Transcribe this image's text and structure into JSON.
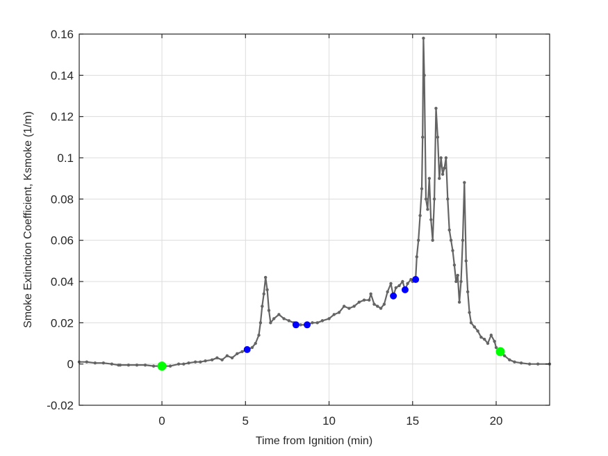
{
  "chart_data": {
    "type": "line",
    "title": "",
    "xlabel": "Time from Ignition (min)",
    "ylabel": "Smoke Extinction Coefficient, Ksmoke (1/m)",
    "xlim": [
      -4.95,
      23.2
    ],
    "ylim": [
      -0.02,
      0.16
    ],
    "xticks": [
      0,
      5,
      10,
      15,
      20
    ],
    "xtick_labels": [
      "0",
      "5",
      "10",
      "15",
      "20"
    ],
    "yticks": [
      -0.02,
      0,
      0.02,
      0.04,
      0.06,
      0.08,
      0.1,
      0.12,
      0.14,
      0.16
    ],
    "ytick_labels": [
      "-0.02",
      "0",
      "0.02",
      "0.04",
      "0.06",
      "0.08",
      "0.1",
      "0.12",
      "0.14",
      "0.16"
    ],
    "grid": true,
    "legend": null,
    "colors": {
      "series": "#646464",
      "start_end_markers": "#00ff00",
      "event_markers": "#0000ff",
      "grid": "#dcdcdc",
      "axis": "#262626"
    },
    "series": [
      {
        "name": "Ksmoke",
        "x": [
          -4.95,
          -4.5,
          -4.0,
          -3.5,
          -3.0,
          -2.6,
          -2.5,
          -2.0,
          -1.5,
          -1.0,
          -0.5,
          0.0,
          0.5,
          1.0,
          1.3,
          1.6,
          2.0,
          2.3,
          2.6,
          3.0,
          3.3,
          3.6,
          3.9,
          4.2,
          4.5,
          4.8,
          5.1,
          5.4,
          5.6,
          5.8,
          5.9,
          6.0,
          6.1,
          6.2,
          6.3,
          6.4,
          6.5,
          6.7,
          7.0,
          7.3,
          7.6,
          7.9,
          8.0,
          8.3,
          8.7,
          9.0,
          9.3,
          9.6,
          10.0,
          10.3,
          10.6,
          10.9,
          11.2,
          11.5,
          11.8,
          12.1,
          12.4,
          12.5,
          12.7,
          12.9,
          13.1,
          13.3,
          13.5,
          13.7,
          13.85,
          14.0,
          14.2,
          14.4,
          14.55,
          14.7,
          14.9,
          15.0,
          15.18,
          15.25,
          15.35,
          15.45,
          15.55,
          15.6,
          15.65,
          15.7,
          15.8,
          15.9,
          16.0,
          16.1,
          16.2,
          16.3,
          16.4,
          16.5,
          16.6,
          16.7,
          16.8,
          16.9,
          17.0,
          17.1,
          17.2,
          17.3,
          17.4,
          17.5,
          17.6,
          17.7,
          17.8,
          17.9,
          18.0,
          18.1,
          18.2,
          18.3,
          18.4,
          18.5,
          18.7,
          18.9,
          19.1,
          19.3,
          19.5,
          19.7,
          19.9,
          20.0,
          20.25,
          20.5,
          20.8,
          21.1,
          21.5,
          22.0,
          22.5,
          23.2
        ],
        "y": [
          0.001,
          0.001,
          0.0005,
          0.0005,
          0.0,
          -0.0005,
          -0.0005,
          -0.0005,
          -0.0005,
          -0.0005,
          -0.001,
          -0.001,
          -0.001,
          0.0,
          0.0,
          0.0005,
          0.001,
          0.001,
          0.0015,
          0.002,
          0.003,
          0.002,
          0.004,
          0.003,
          0.005,
          0.006,
          0.007,
          0.008,
          0.01,
          0.014,
          0.02,
          0.028,
          0.034,
          0.042,
          0.036,
          0.026,
          0.02,
          0.022,
          0.024,
          0.022,
          0.021,
          0.02,
          0.019,
          0.019,
          0.019,
          0.02,
          0.02,
          0.021,
          0.022,
          0.024,
          0.025,
          0.028,
          0.027,
          0.028,
          0.03,
          0.031,
          0.031,
          0.034,
          0.029,
          0.028,
          0.027,
          0.029,
          0.035,
          0.039,
          0.033,
          0.037,
          0.038,
          0.04,
          0.036,
          0.039,
          0.041,
          0.04,
          0.041,
          0.052,
          0.06,
          0.072,
          0.085,
          0.11,
          0.158,
          0.14,
          0.08,
          0.075,
          0.09,
          0.07,
          0.06,
          0.08,
          0.124,
          0.11,
          0.09,
          0.1,
          0.092,
          0.095,
          0.1,
          0.08,
          0.065,
          0.06,
          0.055,
          0.048,
          0.04,
          0.043,
          0.03,
          0.04,
          0.06,
          0.088,
          0.05,
          0.035,
          0.025,
          0.02,
          0.018,
          0.016,
          0.013,
          0.012,
          0.01,
          0.014,
          0.011,
          0.008,
          0.006,
          0.004,
          0.002,
          0.001,
          0.0005,
          0.0,
          0.0,
          0.0
        ]
      }
    ],
    "markers": {
      "start_end": [
        {
          "x": 0.0,
          "y": -0.001
        },
        {
          "x": 20.25,
          "y": 0.006
        }
      ],
      "events": [
        {
          "x": 5.1,
          "y": 0.007
        },
        {
          "x": 8.02,
          "y": 0.019
        },
        {
          "x": 8.69,
          "y": 0.019
        },
        {
          "x": 13.85,
          "y": 0.033
        },
        {
          "x": 14.55,
          "y": 0.036
        },
        {
          "x": 15.18,
          "y": 0.041
        }
      ]
    }
  }
}
